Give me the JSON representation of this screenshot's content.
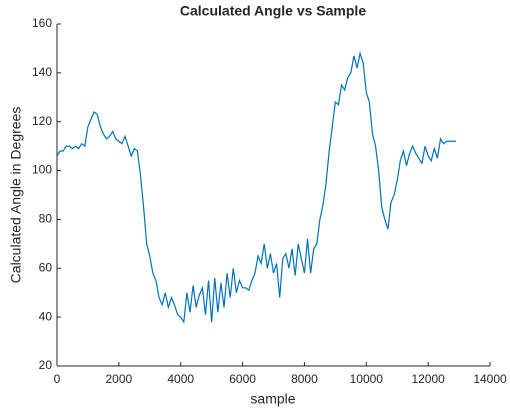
{
  "chart_data": {
    "type": "line",
    "title": "Calculated Angle vs Sample",
    "xlabel": "sample",
    "ylabel": "Calculated Angle in Degrees",
    "x": [
      0,
      100,
      200,
      300,
      400,
      500,
      600,
      700,
      800,
      900,
      1000,
      1100,
      1200,
      1300,
      1400,
      1500,
      1600,
      1700,
      1800,
      1900,
      2000,
      2100,
      2200,
      2300,
      2400,
      2500,
      2600,
      2700,
      2800,
      2900,
      3000,
      3100,
      3200,
      3300,
      3400,
      3500,
      3600,
      3700,
      3800,
      3900,
      4000,
      4100,
      4200,
      4300,
      4400,
      4500,
      4600,
      4700,
      4800,
      4900,
      5000,
      5100,
      5200,
      5300,
      5400,
      5500,
      5600,
      5700,
      5800,
      5900,
      6000,
      6100,
      6200,
      6300,
      6400,
      6500,
      6600,
      6700,
      6800,
      6900,
      7000,
      7100,
      7200,
      7300,
      7400,
      7500,
      7600,
      7700,
      7800,
      7900,
      8000,
      8100,
      8200,
      8300,
      8400,
      8500,
      8600,
      8700,
      8800,
      8900,
      9000,
      9100,
      9200,
      9300,
      9400,
      9500,
      9600,
      9700,
      9800,
      9900,
      10000,
      10100,
      10200,
      10300,
      10400,
      10500,
      10600,
      10700,
      10800,
      10900,
      11000,
      11100,
      11200,
      11300,
      11400,
      11500,
      11600,
      11700,
      11800,
      11900,
      12000,
      12100,
      12200,
      12300,
      12400,
      12500,
      12600,
      12700,
      12800,
      12900
    ],
    "series": [
      {
        "color": "#0072bd",
        "values": [
          106,
          108,
          108,
          110,
          110,
          109,
          110,
          109,
          111,
          110,
          118,
          121,
          124,
          123,
          118,
          115,
          113,
          114,
          116,
          113,
          112,
          111,
          114,
          110,
          106,
          109,
          108,
          98,
          85,
          70,
          65,
          58,
          55,
          48,
          45,
          50,
          44,
          48,
          45,
          41,
          40,
          38,
          50,
          42,
          53,
          44,
          49,
          52,
          41,
          55,
          38,
          56,
          42,
          54,
          44,
          58,
          48,
          60,
          50,
          55,
          52,
          52,
          51,
          55,
          58,
          65,
          62,
          70,
          60,
          66,
          58,
          62,
          48,
          64,
          66,
          60,
          68,
          57,
          70,
          64,
          58,
          72,
          58,
          68,
          70,
          80,
          86,
          95,
          108,
          118,
          128,
          127,
          135,
          133,
          138,
          140,
          147,
          142,
          148,
          144,
          132,
          128,
          115,
          110,
          100,
          85,
          80,
          76,
          87,
          90,
          96,
          104,
          108,
          102,
          107,
          110,
          107,
          105,
          103,
          110,
          106,
          104,
          109,
          105,
          113,
          111,
          112,
          112,
          112,
          112
        ]
      }
    ],
    "xlim": [
      0,
      14000
    ],
    "xticks": [
      0,
      2000,
      4000,
      6000,
      8000,
      10000,
      12000,
      14000
    ],
    "ylim": [
      20,
      160
    ],
    "yticks": [
      20,
      40,
      60,
      80,
      100,
      120,
      140,
      160
    ]
  }
}
